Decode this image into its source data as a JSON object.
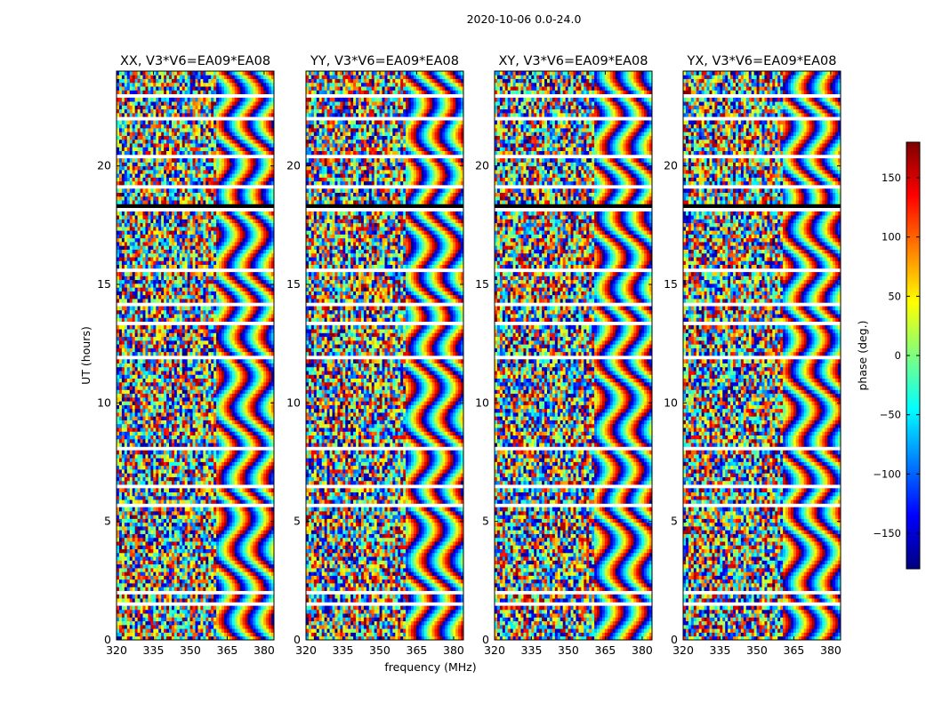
{
  "figure": {
    "suptitle": "2020-10-06 0.0-24.0",
    "xlabel": "frequency (MHz)",
    "ylabel": "UT (hours)",
    "colorbar_label": "phase (deg.)"
  },
  "chart_data": {
    "type": "heatmap",
    "colormap": "jet",
    "colormap_stops": [
      "#00007f",
      "#0000ff",
      "#007fff",
      "#00ffff",
      "#7fff7f",
      "#ffff00",
      "#ff7f00",
      "#ff0000",
      "#7f0000"
    ],
    "value_range": [
      -180,
      180
    ],
    "xlim": [
      320,
      384
    ],
    "ylim": [
      0,
      24
    ],
    "x_ticks": [
      320,
      335,
      350,
      365,
      380
    ],
    "y_ticks": [
      0,
      5,
      10,
      15,
      20
    ],
    "colorbar_ticks": [
      -150,
      -100,
      -50,
      0,
      50,
      100,
      150
    ],
    "panels": [
      {
        "title": "XX, V3*V6=EA09*EA08"
      },
      {
        "title": "YY, V3*V6=EA09*EA08"
      },
      {
        "title": "XY, V3*V6=EA09*EA08"
      },
      {
        "title": "YX, V3*V6=EA09*EA08"
      }
    ]
  }
}
